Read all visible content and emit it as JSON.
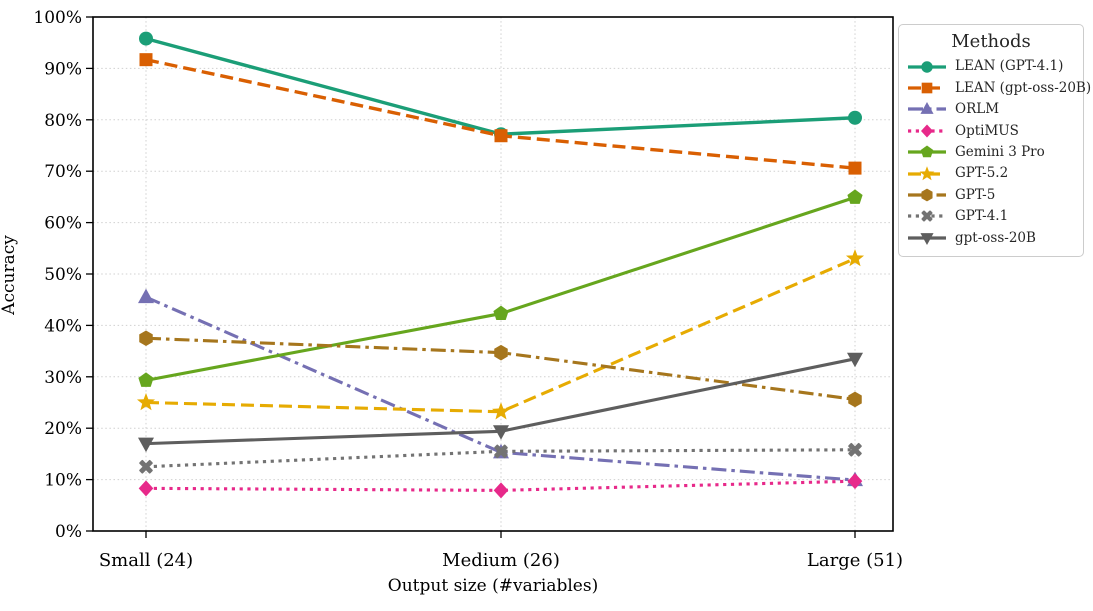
{
  "chart_data": {
    "type": "line",
    "xlabel": "Output size (#variables)",
    "ylabel": "Accuracy",
    "categories": [
      "Small (24)",
      "Medium (26)",
      "Large (51)"
    ],
    "ylim": [
      0,
      100
    ],
    "yticks": [
      "0%",
      "10%",
      "20%",
      "30%",
      "40%",
      "50%",
      "60%",
      "70%",
      "80%",
      "90%",
      "100%"
    ],
    "grid": true,
    "grid_color": "#d0d0d0",
    "legend_title": "Methods",
    "legend_position": "outside-right",
    "series": [
      {
        "name": "LEAN (GPT-4.1)",
        "values": [
          95.8,
          77.2,
          80.4
        ],
        "color": "#1b9e77",
        "linestyle": "solid",
        "marker": "circle"
      },
      {
        "name": "LEAN (gpt-oss-20B)",
        "values": [
          91.7,
          76.9,
          70.6
        ],
        "color": "#d95f02",
        "linestyle": "dashed",
        "marker": "square"
      },
      {
        "name": "ORLM",
        "values": [
          45.5,
          15.3,
          9.9
        ],
        "color": "#7570b3",
        "linestyle": "dashdot",
        "marker": "triangle-up"
      },
      {
        "name": "OptiMUS",
        "values": [
          8.3,
          7.9,
          9.7
        ],
        "color": "#e7298a",
        "linestyle": "dotted",
        "marker": "diamond"
      },
      {
        "name": "Gemini 3 Pro",
        "values": [
          29.3,
          42.3,
          64.9
        ],
        "color": "#66a61e",
        "linestyle": "solid",
        "marker": "pentagon"
      },
      {
        "name": "GPT-5.2",
        "values": [
          25.0,
          23.2,
          53.0
        ],
        "color": "#e6ab02",
        "linestyle": "dashed",
        "marker": "star"
      },
      {
        "name": "GPT-5",
        "values": [
          37.5,
          34.7,
          25.6
        ],
        "color": "#a6761d",
        "linestyle": "dashdot",
        "marker": "hexagon"
      },
      {
        "name": "GPT-4.1",
        "values": [
          12.5,
          15.5,
          15.8
        ],
        "color": "#737373",
        "linestyle": "dotted",
        "marker": "x"
      },
      {
        "name": "gpt-oss-20B",
        "values": [
          17.0,
          19.4,
          33.5
        ],
        "color": "#5e5e5e",
        "linestyle": "solid",
        "marker": "triangle-down"
      }
    ]
  }
}
